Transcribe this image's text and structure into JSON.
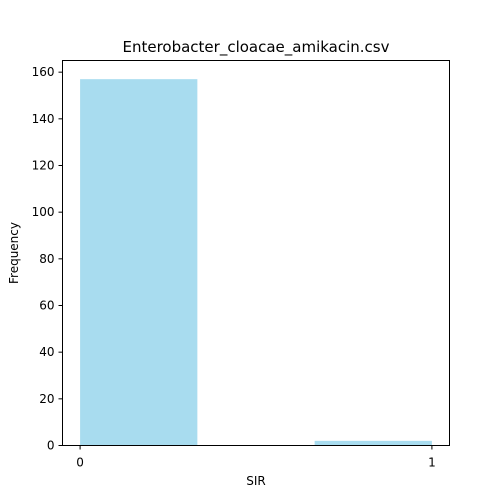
{
  "chart_data": {
    "type": "bar",
    "title": "Enterobacter_cloacae_amikacin.csv",
    "xlabel": "SIR",
    "ylabel": "Frequency",
    "bars": [
      {
        "x_start": 0.0,
        "x_end": 0.3333,
        "value": 157
      },
      {
        "x_start": 0.6667,
        "x_end": 1.0,
        "value": 2
      }
    ],
    "xlim": [
      -0.05,
      1.05
    ],
    "ylim": [
      0,
      165
    ],
    "xticks": [
      0,
      1
    ],
    "yticks": [
      0,
      20,
      40,
      60,
      80,
      100,
      120,
      140,
      160
    ],
    "bar_color": "#a8dcef",
    "grid": false,
    "legend": "none"
  }
}
